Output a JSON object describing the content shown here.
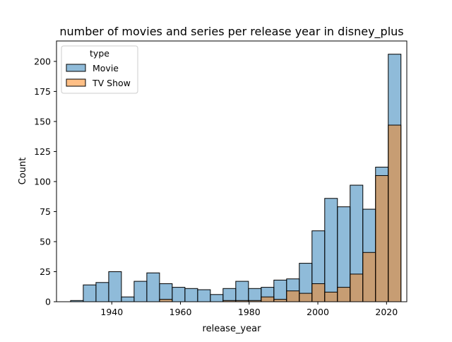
{
  "chart_data": {
    "type": "bar",
    "title": "number of movies and series per release year in disney_plus",
    "xlabel": "release_year",
    "ylabel": "Count",
    "xlim": [
      1923.9,
      2025.9
    ],
    "ylim": [
      0,
      217
    ],
    "xticks": [
      1940,
      1960,
      1980,
      2000,
      2020
    ],
    "yticks": [
      0,
      25,
      50,
      75,
      100,
      125,
      150,
      175,
      200
    ],
    "bin_width": 3.7,
    "bin_start": 1928,
    "legend": {
      "title": "type",
      "placement": "top-left",
      "frame": true
    },
    "series": [
      {
        "name": "Movie",
        "color": "#1f77b4",
        "alpha": 0.5,
        "values": [
          1,
          14,
          16,
          25,
          4,
          17,
          24,
          15,
          12,
          11,
          10,
          6,
          11,
          17,
          11,
          12,
          18,
          19,
          32,
          59,
          86,
          79,
          97,
          77,
          112,
          206
        ]
      },
      {
        "name": "TV Show",
        "color": "#ff7f0e",
        "alpha": 0.5,
        "values": [
          0,
          0,
          0,
          0,
          0,
          0,
          0,
          2,
          0,
          0,
          0,
          0,
          1,
          1,
          1,
          4,
          2,
          9,
          7,
          15,
          8,
          12,
          23,
          41,
          105,
          147
        ]
      }
    ],
    "overlap_color": "#8c8c8c"
  }
}
